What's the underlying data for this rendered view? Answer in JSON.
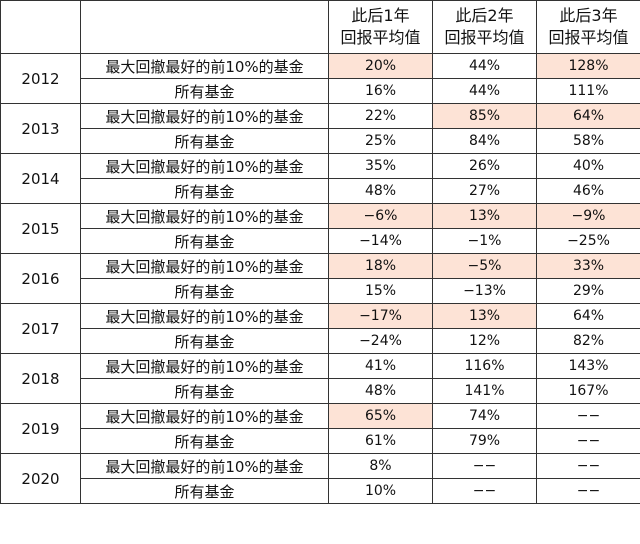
{
  "header": {
    "corner": "",
    "cols": [
      {
        "line1": "此后1年",
        "line2": "回报平均值"
      },
      {
        "line1": "此后2年",
        "line2": "回报平均值"
      },
      {
        "line1": "此后3年",
        "line2": "回报平均值"
      }
    ]
  },
  "highlight_color": "#fde3d6",
  "years": [
    {
      "year": "2012",
      "rows": [
        {
          "label": "最大回撤最好的前10%的基金",
          "values": [
            "20%",
            "44%",
            "128%"
          ],
          "hl": [
            true,
            false,
            true
          ]
        },
        {
          "label": "所有基金",
          "values": [
            "16%",
            "44%",
            "111%"
          ],
          "hl": [
            false,
            false,
            false
          ]
        }
      ]
    },
    {
      "year": "2013",
      "rows": [
        {
          "label": "最大回撤最好的前10%的基金",
          "values": [
            "22%",
            "85%",
            "64%"
          ],
          "hl": [
            false,
            true,
            true
          ]
        },
        {
          "label": "所有基金",
          "values": [
            "25%",
            "84%",
            "58%"
          ],
          "hl": [
            false,
            false,
            false
          ]
        }
      ]
    },
    {
      "year": "2014",
      "rows": [
        {
          "label": "最大回撤最好的前10%的基金",
          "values": [
            "35%",
            "26%",
            "40%"
          ],
          "hl": [
            false,
            false,
            false
          ]
        },
        {
          "label": "所有基金",
          "values": [
            "48%",
            "27%",
            "46%"
          ],
          "hl": [
            false,
            false,
            false
          ]
        }
      ]
    },
    {
      "year": "2015",
      "rows": [
        {
          "label": "最大回撤最好的前10%的基金",
          "values": [
            "−6%",
            "13%",
            "−9%"
          ],
          "hl": [
            true,
            true,
            true
          ]
        },
        {
          "label": "所有基金",
          "values": [
            "−14%",
            "−1%",
            "−25%"
          ],
          "hl": [
            false,
            false,
            false
          ]
        }
      ]
    },
    {
      "year": "2016",
      "rows": [
        {
          "label": "最大回撤最好的前10%的基金",
          "values": [
            "18%",
            "−5%",
            "33%"
          ],
          "hl": [
            true,
            true,
            true
          ]
        },
        {
          "label": "所有基金",
          "values": [
            "15%",
            "−13%",
            "29%"
          ],
          "hl": [
            false,
            false,
            false
          ]
        }
      ]
    },
    {
      "year": "2017",
      "rows": [
        {
          "label": "最大回撤最好的前10%的基金",
          "values": [
            "−17%",
            "13%",
            "64%"
          ],
          "hl": [
            true,
            true,
            false
          ]
        },
        {
          "label": "所有基金",
          "values": [
            "−24%",
            "12%",
            "82%"
          ],
          "hl": [
            false,
            false,
            false
          ]
        }
      ]
    },
    {
      "year": "2018",
      "rows": [
        {
          "label": "最大回撤最好的前10%的基金",
          "values": [
            "41%",
            "116%",
            "143%"
          ],
          "hl": [
            false,
            false,
            false
          ]
        },
        {
          "label": "所有基金",
          "values": [
            "48%",
            "141%",
            "167%"
          ],
          "hl": [
            false,
            false,
            false
          ]
        }
      ]
    },
    {
      "year": "2019",
      "rows": [
        {
          "label": "最大回撤最好的前10%的基金",
          "values": [
            "65%",
            "74%",
            "−−"
          ],
          "hl": [
            true,
            false,
            false
          ]
        },
        {
          "label": "所有基金",
          "values": [
            "61%",
            "79%",
            "−−"
          ],
          "hl": [
            false,
            false,
            false
          ]
        }
      ]
    },
    {
      "year": "2020",
      "rows": [
        {
          "label": "最大回撤最好的前10%的基金",
          "values": [
            "8%",
            "−−",
            "−−"
          ],
          "hl": [
            false,
            false,
            false
          ]
        },
        {
          "label": "所有基金",
          "values": [
            "10%",
            "−−",
            "−−"
          ],
          "hl": [
            false,
            false,
            false
          ]
        }
      ]
    }
  ]
}
